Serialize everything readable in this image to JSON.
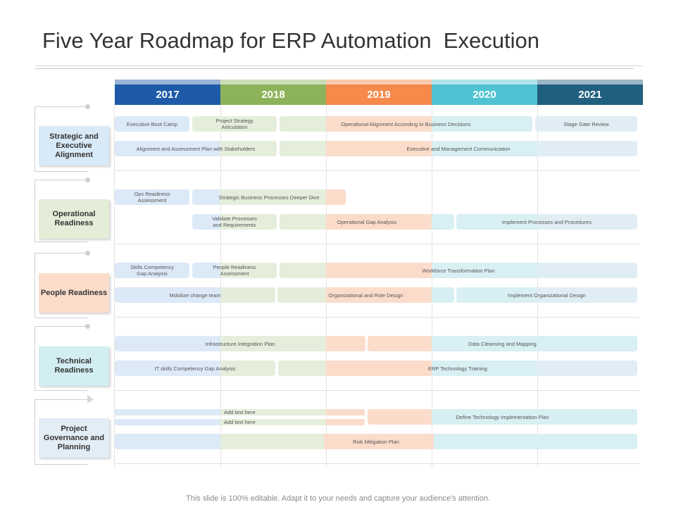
{
  "title": "Five Year Roadmap for ERP Automation  Execution",
  "footer": "This slide is 100% editable. Adapt it to your needs and capture your audience's attention.",
  "colors": {
    "year_2017": "#1e5aa8",
    "year_2018": "#8db35a",
    "year_2019": "#f58a4b",
    "year_2020": "#4fc3d1",
    "year_2021": "#205f7e",
    "tint_blue": "#dce9f7",
    "tint_green": "#e5eedb",
    "tint_orange": "#fbdccb",
    "tint_cyan": "#d8eff3",
    "tint_teal": "#e0edf4"
  },
  "years": [
    "2017",
    "2018",
    "2019",
    "2020",
    "2021"
  ],
  "sections": [
    {
      "label": "Strategic and Executive Alignment",
      "card_color": "#d8eaf7",
      "marker": "dot"
    },
    {
      "label": "Operational Readiness",
      "card_color": "#e4edd8",
      "marker": "dot"
    },
    {
      "label": "People Readiness",
      "card_color": "#fbdccb",
      "marker": "dot"
    },
    {
      "label": "Technical Readiness",
      "card_color": "#d3eef2",
      "marker": "dot"
    },
    {
      "label": "Project Governance and Planning",
      "card_color": "#e2edf6",
      "marker": "triangle"
    }
  ],
  "tasks": {
    "executive_boot_camp": "Executive Boot Camp",
    "project_strategy_articulation": "Project Strategy\nArticulation",
    "operational_alignment": "Operational  Alignment  According  to Business Decisions",
    "stage_gate_review": "Stage Gate Review",
    "alignment_assessment_plan": "Alignment  and  Assessment  Plan  with Stakeholders",
    "exec_mgmt_communication": "Executive  and  Management  Communication",
    "ops_readiness_assessment": "Ops Readiness\nAssessment",
    "strategic_business_processes": "Strategic  Business  Processes  Deeper  Dive",
    "validate_processes": "Validate  Processes\nand Requirements",
    "operational_gap_analysis": "Operational  Gap Analysis",
    "implement_processes": "Implement  Processes  and  Procedures",
    "skills_competency_gap": "Skills Competency\nGap Analysis",
    "people_readiness_assessment": "People  Readiness\nAssessment",
    "workforce_transformation": "Workforce  Transformation  Plan",
    "mobilize_change_team": "Mobilize  change  team",
    "organizational_role_design": "Organizational  and  Role Design",
    "implement_org_design": "Implement  Organizational  Design",
    "infrastructure_integration": "Infrastructure  Integration  Plan",
    "data_cleansing_mapping": "Data  Cleansing  and  Mapping",
    "it_skills_gap": "IT skills Competency  Gap Analysis",
    "erp_technology_training": "ERP  Technology  Training",
    "add_text_1": "Add text here",
    "add_text_2": "Add text here",
    "define_tech_plan": "Define  Technology  Implementation  Plan",
    "risk_mitigation_plan": "Risk Mitigation Plan"
  }
}
